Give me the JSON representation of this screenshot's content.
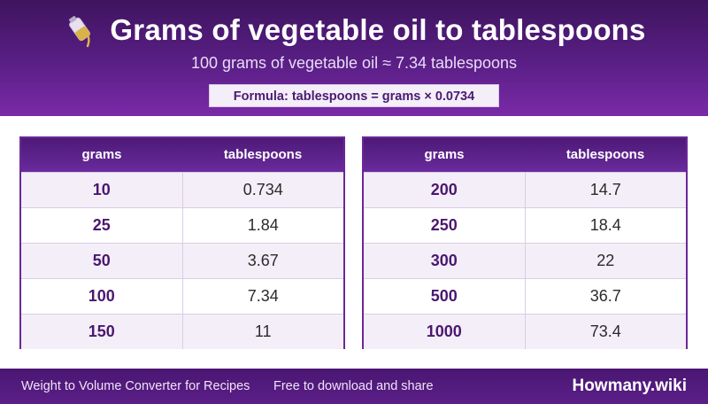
{
  "header": {
    "title": "Grams of vegetable oil to tablespoons",
    "icon": "oil-bottle-icon",
    "subtitle": "100 grams of vegetable oil ≈ 7.34 tablespoons",
    "formula": "Formula: tablespoons = grams × 0.0734"
  },
  "tables": [
    {
      "col1": "grams",
      "col2": "tablespoons",
      "rows": [
        {
          "grams": "10",
          "tbsp": "0.734"
        },
        {
          "grams": "25",
          "tbsp": "1.84"
        },
        {
          "grams": "50",
          "tbsp": "3.67"
        },
        {
          "grams": "100",
          "tbsp": "7.34"
        },
        {
          "grams": "150",
          "tbsp": "11"
        }
      ]
    },
    {
      "col1": "grams",
      "col2": "tablespoons",
      "rows": [
        {
          "grams": "200",
          "tbsp": "14.7"
        },
        {
          "grams": "250",
          "tbsp": "18.4"
        },
        {
          "grams": "300",
          "tbsp": "22"
        },
        {
          "grams": "500",
          "tbsp": "36.7"
        },
        {
          "grams": "1000",
          "tbsp": "73.4"
        }
      ]
    }
  ],
  "footer": {
    "left": "Weight to Volume Converter for Recipes",
    "middle": "Free to download and share",
    "brand": "Howmany.wiki"
  },
  "colors": {
    "header_dark": "#3e145e",
    "header_light": "#7a2aa8",
    "accent": "#6c2796",
    "row_alt": "#f3eef8"
  }
}
